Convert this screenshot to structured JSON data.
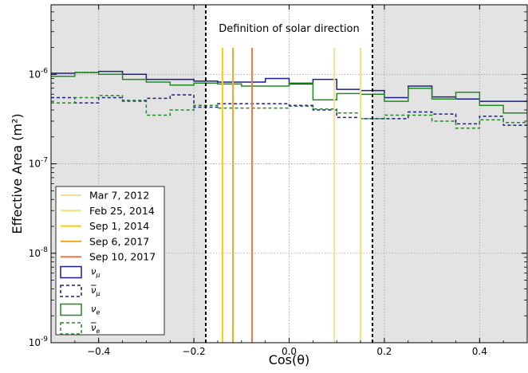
{
  "chart_data": {
    "type": "line",
    "title": "",
    "xlabel": "Cos(θ)",
    "ylabel": "Effective Area (m²)",
    "xlim": [
      -0.5,
      0.5
    ],
    "ylim": [
      1e-09,
      6e-06
    ],
    "yscale": "log",
    "grid": true,
    "legend_position": "lower-left",
    "x_ticks": [
      -0.4,
      -0.2,
      0.0,
      0.2,
      0.4
    ],
    "x_tick_labels": [
      "−0.4",
      "−0.2",
      "0.0",
      "0.2",
      "0.4"
    ],
    "y_ticks": [
      1e-09,
      1e-08,
      1e-07,
      1e-06
    ],
    "y_tick_labels": [
      {
        "base": "10",
        "exp": "-9"
      },
      {
        "base": "10",
        "exp": "-8"
      },
      {
        "base": "10",
        "exp": "-7"
      },
      {
        "base": "10",
        "exp": "-6"
      }
    ],
    "annotation": "Definition of solar direction",
    "solar_region": [
      -0.175,
      0.175
    ],
    "shaded_color": "#e3e3e3",
    "vlines": [
      {
        "name": "Mar 7, 2012",
        "x": 0.095,
        "color": "#f5dc9a"
      },
      {
        "name": "Feb 25, 2014",
        "x": 0.15,
        "color": "#f4e07a"
      },
      {
        "name": "Sep 1, 2014",
        "x": -0.14,
        "color": "#ffcc00"
      },
      {
        "name": "Sep 6, 2017",
        "x": -0.118,
        "color": "#f5a623"
      },
      {
        "name": "Sep 10, 2017",
        "x": -0.078,
        "color": "#f07845"
      }
    ],
    "bin_edges": [
      -0.5,
      -0.45,
      -0.4,
      -0.35,
      -0.3,
      -0.25,
      -0.2,
      -0.15,
      -0.1,
      -0.05,
      0.0,
      0.05,
      0.1,
      0.15,
      0.2,
      0.25,
      0.3,
      0.35,
      0.4,
      0.45,
      0.5
    ],
    "series": [
      {
        "name": "ν_μ",
        "label_base": "ν",
        "label_sub": "μ",
        "bar": false,
        "color": "#1c1c8c",
        "dash": false,
        "values": [
          1.03e-06,
          1.05e-06,
          1.08e-06,
          1e-06,
          8.8e-07,
          8.8e-07,
          8.4e-07,
          8.2e-07,
          8.2e-07,
          9e-07,
          7.8e-07,
          8.8e-07,
          6.8e-07,
          6.6e-07,
          5.5e-07,
          7.4e-07,
          5.6e-07,
          5.3e-07,
          5e-07,
          5e-07
        ]
      },
      {
        "name": "ν̄_μ",
        "label_base": "ν",
        "label_sub": "μ",
        "bar": true,
        "color": "#1c1c8c",
        "dash": true,
        "values": [
          5.5e-07,
          4.8e-07,
          5.5e-07,
          5.1e-07,
          5.4e-07,
          5.9e-07,
          4.3e-07,
          4.7e-07,
          4.7e-07,
          4.7e-07,
          4.5e-07,
          4e-07,
          3.3e-07,
          3.2e-07,
          3.2e-07,
          3.8e-07,
          3.6e-07,
          2.8e-07,
          3.4e-07,
          2.7e-07
        ]
      },
      {
        "name": "ν_e",
        "label_base": "ν",
        "label_sub": "e",
        "bar": false,
        "color": "#1e8c1e",
        "dash": false,
        "values": [
          9.5e-07,
          1.05e-06,
          1e-06,
          8.8e-07,
          8.2e-07,
          7.6e-07,
          8e-07,
          7.8e-07,
          7.4e-07,
          7.4e-07,
          8e-07,
          5.2e-07,
          6.1e-07,
          6e-07,
          5e-07,
          7e-07,
          5.3e-07,
          6.3e-07,
          4.5e-07,
          3.7e-07
        ]
      },
      {
        "name": "ν̄_e",
        "label_base": "ν",
        "label_sub": "e",
        "bar": true,
        "color": "#1e8c1e",
        "dash": true,
        "values": [
          4.8e-07,
          5.5e-07,
          5.8e-07,
          5e-07,
          3.5e-07,
          4e-07,
          4.5e-07,
          4.2e-07,
          4.2e-07,
          4.2e-07,
          4.4e-07,
          4.1e-07,
          3.7e-07,
          3.2e-07,
          3.5e-07,
          3.5e-07,
          3e-07,
          2.5e-07,
          3.1e-07,
          2.9e-07
        ]
      }
    ]
  }
}
